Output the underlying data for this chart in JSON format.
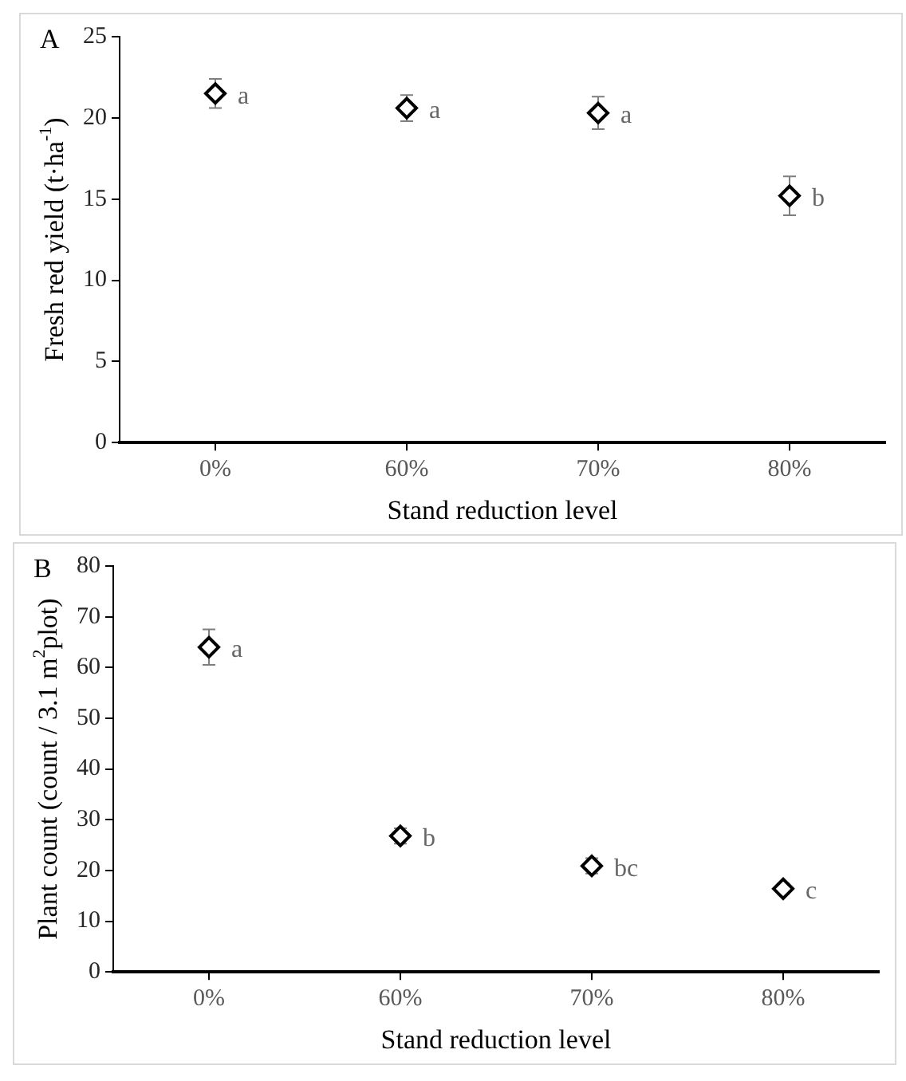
{
  "chart_data": [
    {
      "type": "scatter",
      "title": "A",
      "categories": [
        "0%",
        "60%",
        "70%",
        "80%"
      ],
      "xlabel": "Stand reduction level",
      "ylabel": "Fresh red yield (t·ha$^{-1}$)",
      "color": "#000000",
      "marker": "diamond",
      "values": [
        21.5,
        20.6,
        20.3,
        15.2
      ],
      "errors": [
        0.9,
        0.8,
        1.0,
        1.2
      ],
      "ylim": [
        0,
        25
      ],
      "yticks": [
        0,
        5,
        10,
        15,
        20,
        25
      ],
      "grid": false,
      "legend": false,
      "annotations": [
        {
          "text": "a",
          "x": "0%",
          "y": 21.5
        },
        {
          "text": "a",
          "x": "60%",
          "y": 20.6
        },
        {
          "text": "a",
          "x": "70%",
          "y": 20.3
        },
        {
          "text": "b",
          "x": "80%",
          "y": 15.2
        }
      ]
    },
    {
      "type": "scatter",
      "title": "B",
      "categories": [
        "0%",
        "60%",
        "70%",
        "80%"
      ],
      "xlabel": "Stand reduction level",
      "ylabel": "Plant count (count / 3.1 m$^{2}$plot)",
      "color": "#000000",
      "marker": "diamond",
      "values": [
        64.0,
        26.8,
        20.9,
        16.4
      ],
      "errors": [
        3.5,
        1.5,
        1.5,
        1.0
      ],
      "ylim": [
        0,
        80
      ],
      "yticks": [
        0,
        10,
        20,
        30,
        40,
        50,
        60,
        70,
        80
      ],
      "grid": false,
      "legend": false,
      "annotations": [
        {
          "text": "a",
          "x": "0%",
          "y": 64.0
        },
        {
          "text": "b",
          "x": "60%",
          "y": 26.8
        },
        {
          "text": "bc",
          "x": "70%",
          "y": 20.9
        },
        {
          "text": "c",
          "x": "80%",
          "y": 16.4
        }
      ]
    }
  ]
}
